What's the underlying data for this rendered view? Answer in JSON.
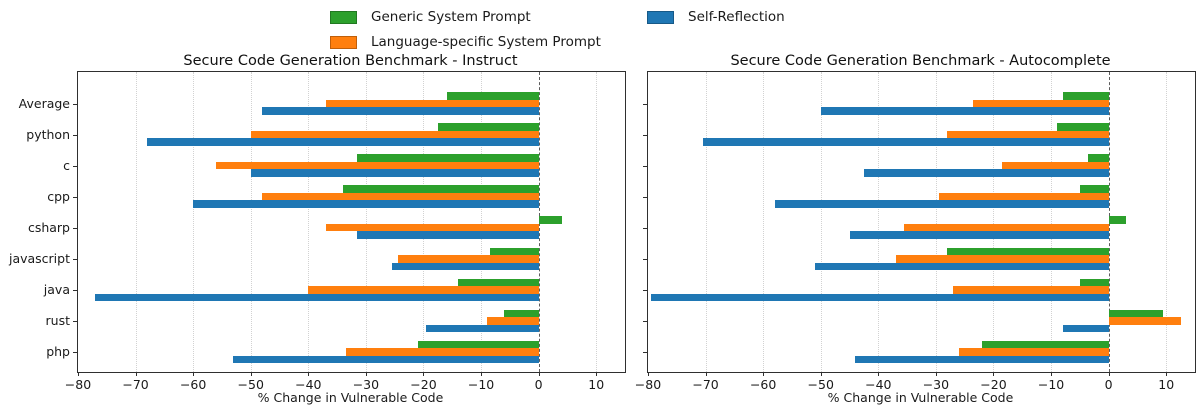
{
  "legend": {
    "items": [
      {
        "label": "Generic System Prompt",
        "color": "#2ca02c"
      },
      {
        "label": "Language-specific System Prompt",
        "color": "#ff7f0e"
      },
      {
        "label": "Self-Reflection",
        "color": "#1f77b4"
      }
    ]
  },
  "chart_data": [
    {
      "type": "bar",
      "orientation": "horizontal",
      "title": "Secure Code Generation Benchmark - Instruct",
      "xlabel": "% Change in Vulnerable Code",
      "xlim": [
        -80,
        15
      ],
      "xticks": [
        -80,
        -70,
        -60,
        -50,
        -40,
        -30,
        -20,
        -10,
        0,
        10
      ],
      "grid": "dotted",
      "zero_line": "dashed",
      "y_labels_visible": true,
      "categories": [
        "Average",
        "python",
        "c",
        "cpp",
        "csharp",
        "javascript",
        "java",
        "rust",
        "php"
      ],
      "series": [
        {
          "name": "Generic System Prompt",
          "color": "#2ca02c",
          "values": [
            -16,
            -17.5,
            -31.5,
            -34,
            4,
            -8.5,
            -14,
            -6,
            -21
          ]
        },
        {
          "name": "Language-specific System Prompt",
          "color": "#ff7f0e",
          "values": [
            -37,
            -50,
            -56,
            -48,
            -37,
            -24.5,
            -40,
            -9,
            -33.5
          ]
        },
        {
          "name": "Self-Reflection",
          "color": "#1f77b4",
          "values": [
            -48,
            -68,
            -50,
            -60,
            -31.5,
            -25.5,
            -77,
            -19.5,
            -53
          ]
        }
      ]
    },
    {
      "type": "bar",
      "orientation": "horizontal",
      "title": "Secure Code Generation Benchmark - Autocomplete",
      "xlabel": "% Change in Vulnerable Code",
      "xlim": [
        -80,
        15
      ],
      "xticks": [
        -80,
        -70,
        -60,
        -50,
        -40,
        -30,
        -20,
        -10,
        0,
        10
      ],
      "grid": "dotted",
      "zero_line": "dashed",
      "y_labels_visible": false,
      "categories": [
        "Average",
        "python",
        "c",
        "cpp",
        "csharp",
        "javascript",
        "java",
        "rust",
        "php"
      ],
      "series": [
        {
          "name": "Generic System Prompt",
          "color": "#2ca02c",
          "values": [
            -8,
            -9,
            -3.5,
            -5,
            3,
            -28,
            -5,
            9.5,
            -22
          ]
        },
        {
          "name": "Language-specific System Prompt",
          "color": "#ff7f0e",
          "values": [
            -23.5,
            -28,
            -18.5,
            -29.5,
            -35.5,
            -37,
            -27,
            12.5,
            -26
          ]
        },
        {
          "name": "Self-Reflection",
          "color": "#1f77b4",
          "values": [
            -50,
            -70.5,
            -42.5,
            -58,
            -45,
            -51,
            -79.5,
            -8,
            -44
          ]
        }
      ]
    }
  ]
}
